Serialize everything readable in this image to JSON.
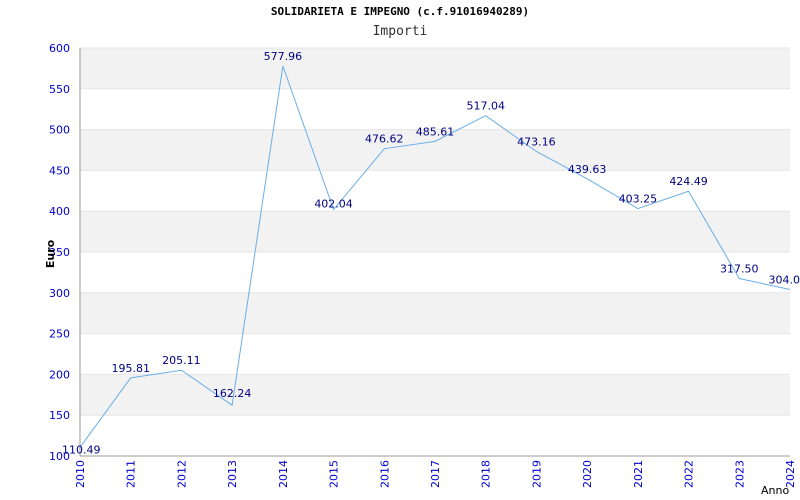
{
  "chart_data": {
    "type": "line",
    "title": "SOLIDARIETA E IMPEGNO (c.f.91016940289)",
    "subtitle": "Importi",
    "xlabel": "Anno",
    "ylabel": "Euro",
    "ylim": [
      100,
      600
    ],
    "y_ticks": [
      "100",
      "150",
      "200",
      "250",
      "300",
      "350",
      "400",
      "450",
      "500",
      "550",
      "600"
    ],
    "x": [
      "2010",
      "2011",
      "2012",
      "2013",
      "2014",
      "2015",
      "2016",
      "2017",
      "2018",
      "2019",
      "2020",
      "2021",
      "2022",
      "2023",
      "2024"
    ],
    "values": [
      110.49,
      195.81,
      205.11,
      162.24,
      577.96,
      402.04,
      476.62,
      485.61,
      517.04,
      473.16,
      439.63,
      403.25,
      424.49,
      317.5,
      304.0
    ],
    "data_labels": [
      "110.49",
      "195.81",
      "205.11",
      "162.24",
      "577.96",
      "402.04",
      "476.62",
      "485.61",
      "517.04",
      "473.16",
      "439.63",
      "403.25",
      "424.49",
      "317.50",
      "304.0"
    ],
    "grid": "horizontal bands",
    "colors": {
      "line": "#6aaee8",
      "band": "#f2f2f2",
      "axis_text": "#0000cc",
      "label_text": "#000080"
    }
  }
}
